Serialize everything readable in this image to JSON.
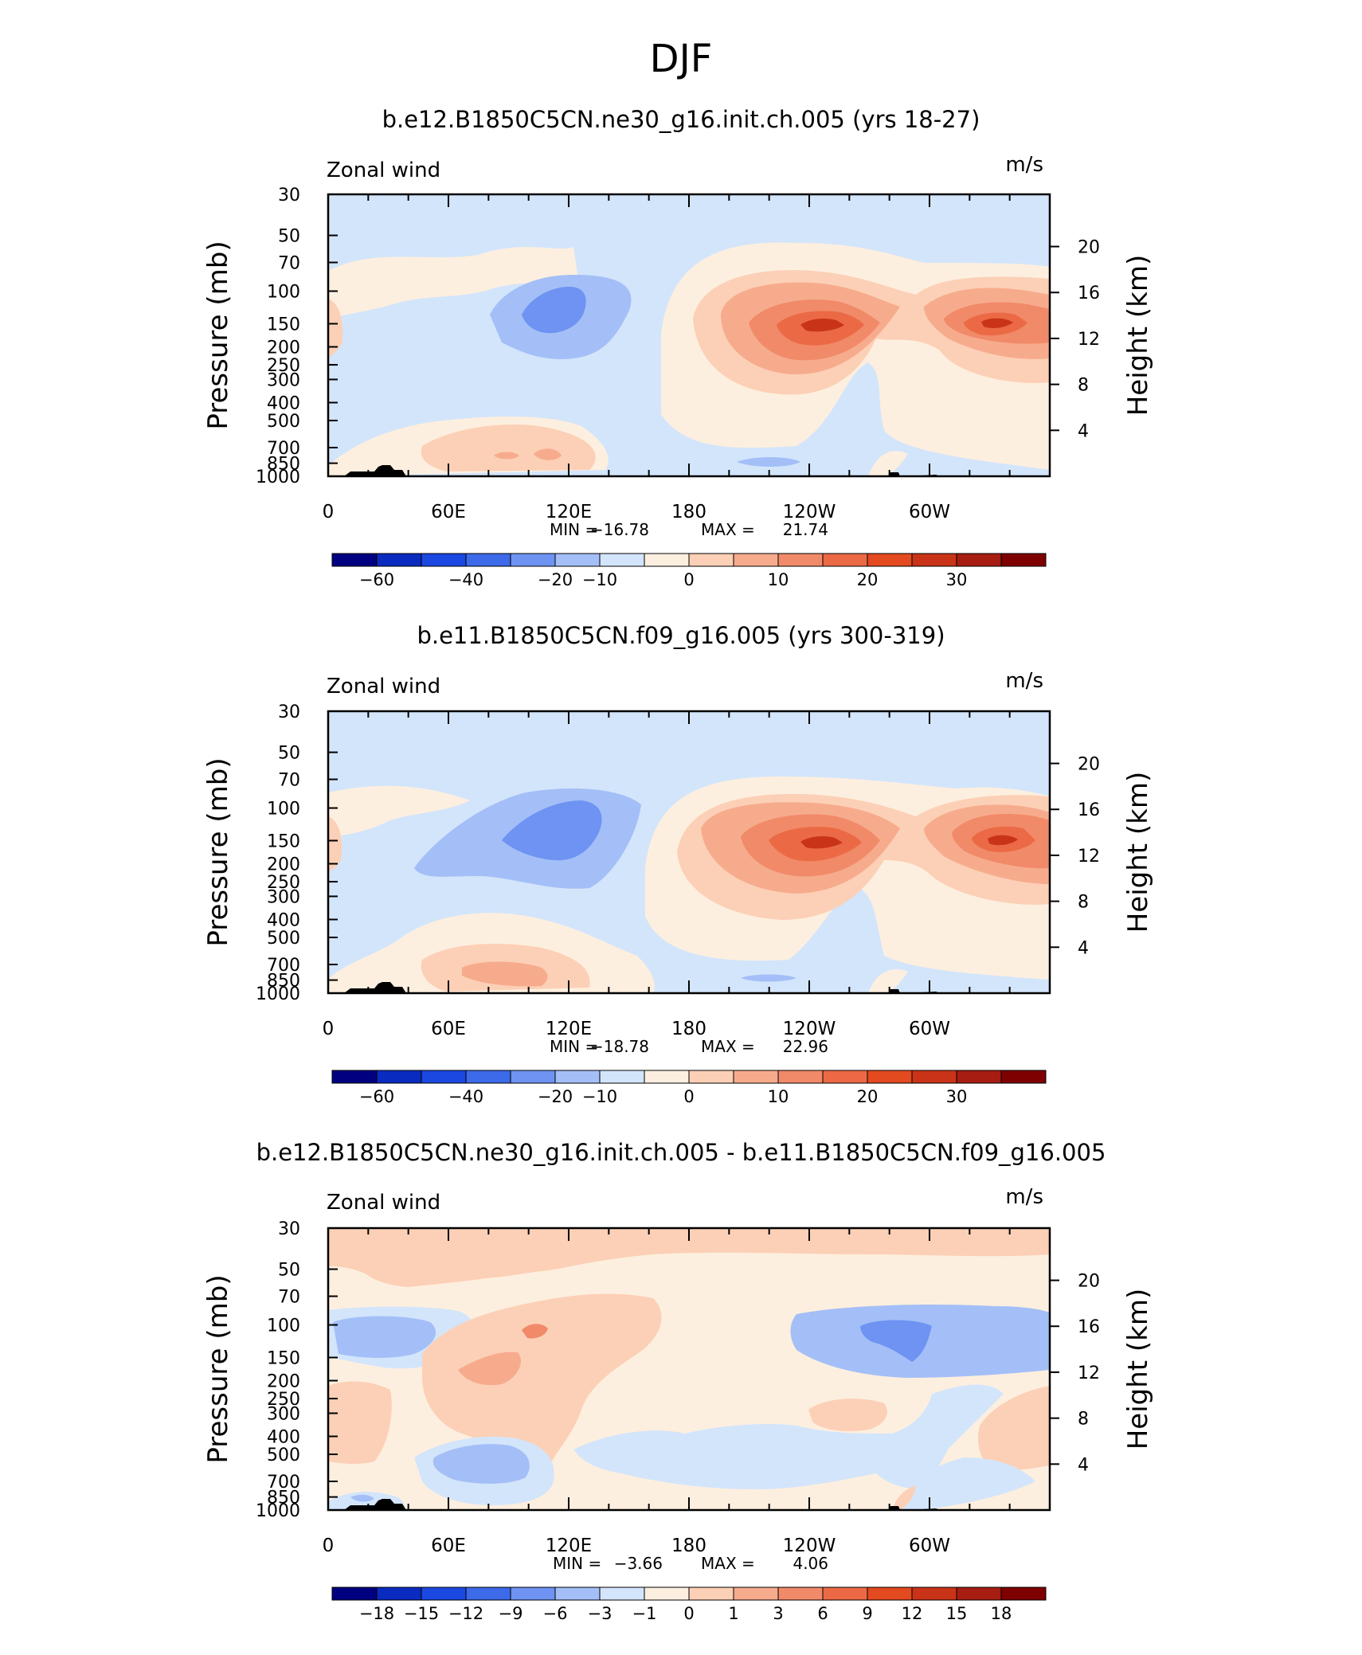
{
  "figure": {
    "title": "DJF",
    "colors": {
      "neg": [
        "#000080",
        "#0a2bbf",
        "#1b48e0",
        "#3c6ae8",
        "#6e93f2",
        "#a4bff7",
        "#d3e5fb"
      ],
      "pos": [
        "#fdefdf",
        "#fcd0b6",
        "#f7ab8d",
        "#f18a69",
        "#eb6a45",
        "#e34a1f",
        "#c93418",
        "#a71d12",
        "#7f0000"
      ]
    }
  },
  "panels": [
    {
      "title": "b.e12.B1850C5CN.ne30_g16.init.ch.005 (yrs 18-27)",
      "variable_label": "Zonal wind",
      "units_label": "m/s",
      "left_axis_label": "Pressure (mb)",
      "right_axis_label": "Height (km)",
      "stats": {
        "min_label": "MIN =",
        "min_value": "−16.78",
        "max_label": "MAX =",
        "max_value": "21.74"
      },
      "colorbar_labels": [
        "−60",
        "−40",
        "−20",
        "−10",
        "0",
        "10",
        "20",
        "30"
      ]
    },
    {
      "title": "b.e11.B1850C5CN.f09_g16.005 (yrs 300-319)",
      "variable_label": "Zonal wind",
      "units_label": "m/s",
      "left_axis_label": "Pressure (mb)",
      "right_axis_label": "Height (km)",
      "stats": {
        "min_label": "MIN =",
        "min_value": "−18.78",
        "max_label": "MAX =",
        "max_value": "22.96"
      },
      "colorbar_labels": [
        "−60",
        "−40",
        "−20",
        "−10",
        "0",
        "10",
        "20",
        "30"
      ]
    },
    {
      "title": "b.e12.B1850C5CN.ne30_g16.init.ch.005 - b.e11.B1850C5CN.f09_g16.005",
      "variable_label": "Zonal wind",
      "units_label": "m/s",
      "left_axis_label": "Pressure (mb)",
      "right_axis_label": "Height (km)",
      "stats": {
        "min_label": "MIN =",
        "min_value": "−3.66",
        "max_label": "MAX =",
        "max_value": "4.06"
      },
      "colorbar_labels": [
        "−18",
        "−15",
        "−12",
        "−9",
        "−6",
        "−3",
        "−1",
        "0",
        "1",
        "3",
        "6",
        "9",
        "12",
        "15",
        "18"
      ]
    }
  ],
  "chart_data": [
    {
      "type": "heatmap",
      "title": "b.e12.B1850C5CN.ne30_g16.init.ch.005 (yrs 18-27)",
      "x_ticks": [
        "0",
        "60E",
        "120E",
        "180",
        "120W",
        "60W"
      ],
      "y_ticks_pressure_mb": [
        "30",
        "50",
        "70",
        "100",
        "150",
        "200",
        "250",
        "300",
        "400",
        "500",
        "700",
        "850",
        "1000"
      ],
      "y_ticks_height_km": [
        "4",
        "8",
        "12",
        "16",
        "20"
      ],
      "ylim_mb": [
        1000,
        30
      ],
      "min": -16.78,
      "max": 21.74,
      "contour_levels": [
        -60,
        -40,
        -20,
        -10,
        0,
        10,
        20,
        30
      ],
      "features": [
        {
          "sign": "negative",
          "peak_lon": 120,
          "peak_mb": 150,
          "approx_value": -15
        },
        {
          "sign": "positive",
          "peak_lon": 245,
          "peak_mb": 150,
          "approx_value": 21.74
        },
        {
          "sign": "positive",
          "peak_lon": 325,
          "peak_mb": 150,
          "approx_value": 21
        },
        {
          "sign": "positive",
          "peak_lon": 110,
          "peak_mb": 700,
          "approx_value": 7
        }
      ]
    },
    {
      "type": "heatmap",
      "title": "b.e11.B1850C5CN.f09_g16.005 (yrs 300-319)",
      "x_ticks": [
        "0",
        "60E",
        "120E",
        "180",
        "120W",
        "60W"
      ],
      "y_ticks_pressure_mb": [
        "30",
        "50",
        "70",
        "100",
        "150",
        "200",
        "250",
        "300",
        "400",
        "500",
        "700",
        "850",
        "1000"
      ],
      "y_ticks_height_km": [
        "4",
        "8",
        "12",
        "16",
        "20"
      ],
      "ylim_mb": [
        1000,
        30
      ],
      "min": -18.78,
      "max": 22.96,
      "contour_levels": [
        -60,
        -40,
        -20,
        -10,
        0,
        10,
        20,
        30
      ],
      "features": [
        {
          "sign": "negative",
          "peak_lon": 110,
          "peak_mb": 130,
          "approx_value": -18
        },
        {
          "sign": "positive",
          "peak_lon": 245,
          "peak_mb": 150,
          "approx_value": 22.96
        },
        {
          "sign": "positive",
          "peak_lon": 325,
          "peak_mb": 150,
          "approx_value": 22
        },
        {
          "sign": "positive",
          "peak_lon": 90,
          "peak_mb": 700,
          "approx_value": 7
        }
      ]
    },
    {
      "type": "heatmap",
      "title": "b.e12.B1850C5CN.ne30_g16.init.ch.005 - b.e11.B1850C5CN.f09_g16.005",
      "x_ticks": [
        "0",
        "60E",
        "120E",
        "180",
        "120W",
        "60W"
      ],
      "y_ticks_pressure_mb": [
        "30",
        "50",
        "70",
        "100",
        "150",
        "200",
        "250",
        "300",
        "400",
        "500",
        "700",
        "850",
        "1000"
      ],
      "y_ticks_height_km": [
        "4",
        "8",
        "12",
        "16",
        "20"
      ],
      "ylim_mb": [
        1000,
        30
      ],
      "min": -3.66,
      "max": 4.06,
      "contour_levels": [
        -18,
        -15,
        -12,
        -9,
        -6,
        -3,
        -1,
        0,
        1,
        3,
        6,
        9,
        12,
        15,
        18
      ],
      "features": [
        {
          "sign": "negative",
          "peak_lon": 285,
          "peak_mb": 110,
          "approx_value": -3.66
        },
        {
          "sign": "negative",
          "peak_lon": 30,
          "peak_mb": 110,
          "approx_value": -2
        },
        {
          "sign": "positive",
          "peak_lon": 105,
          "peak_mb": 100,
          "approx_value": 4.06
        },
        {
          "sign": "positive",
          "peak_lon": 75,
          "peak_mb": 160,
          "approx_value": 3
        },
        {
          "sign": "negative",
          "peak_lon": 80,
          "peak_mb": 600,
          "approx_value": -2
        }
      ]
    }
  ]
}
